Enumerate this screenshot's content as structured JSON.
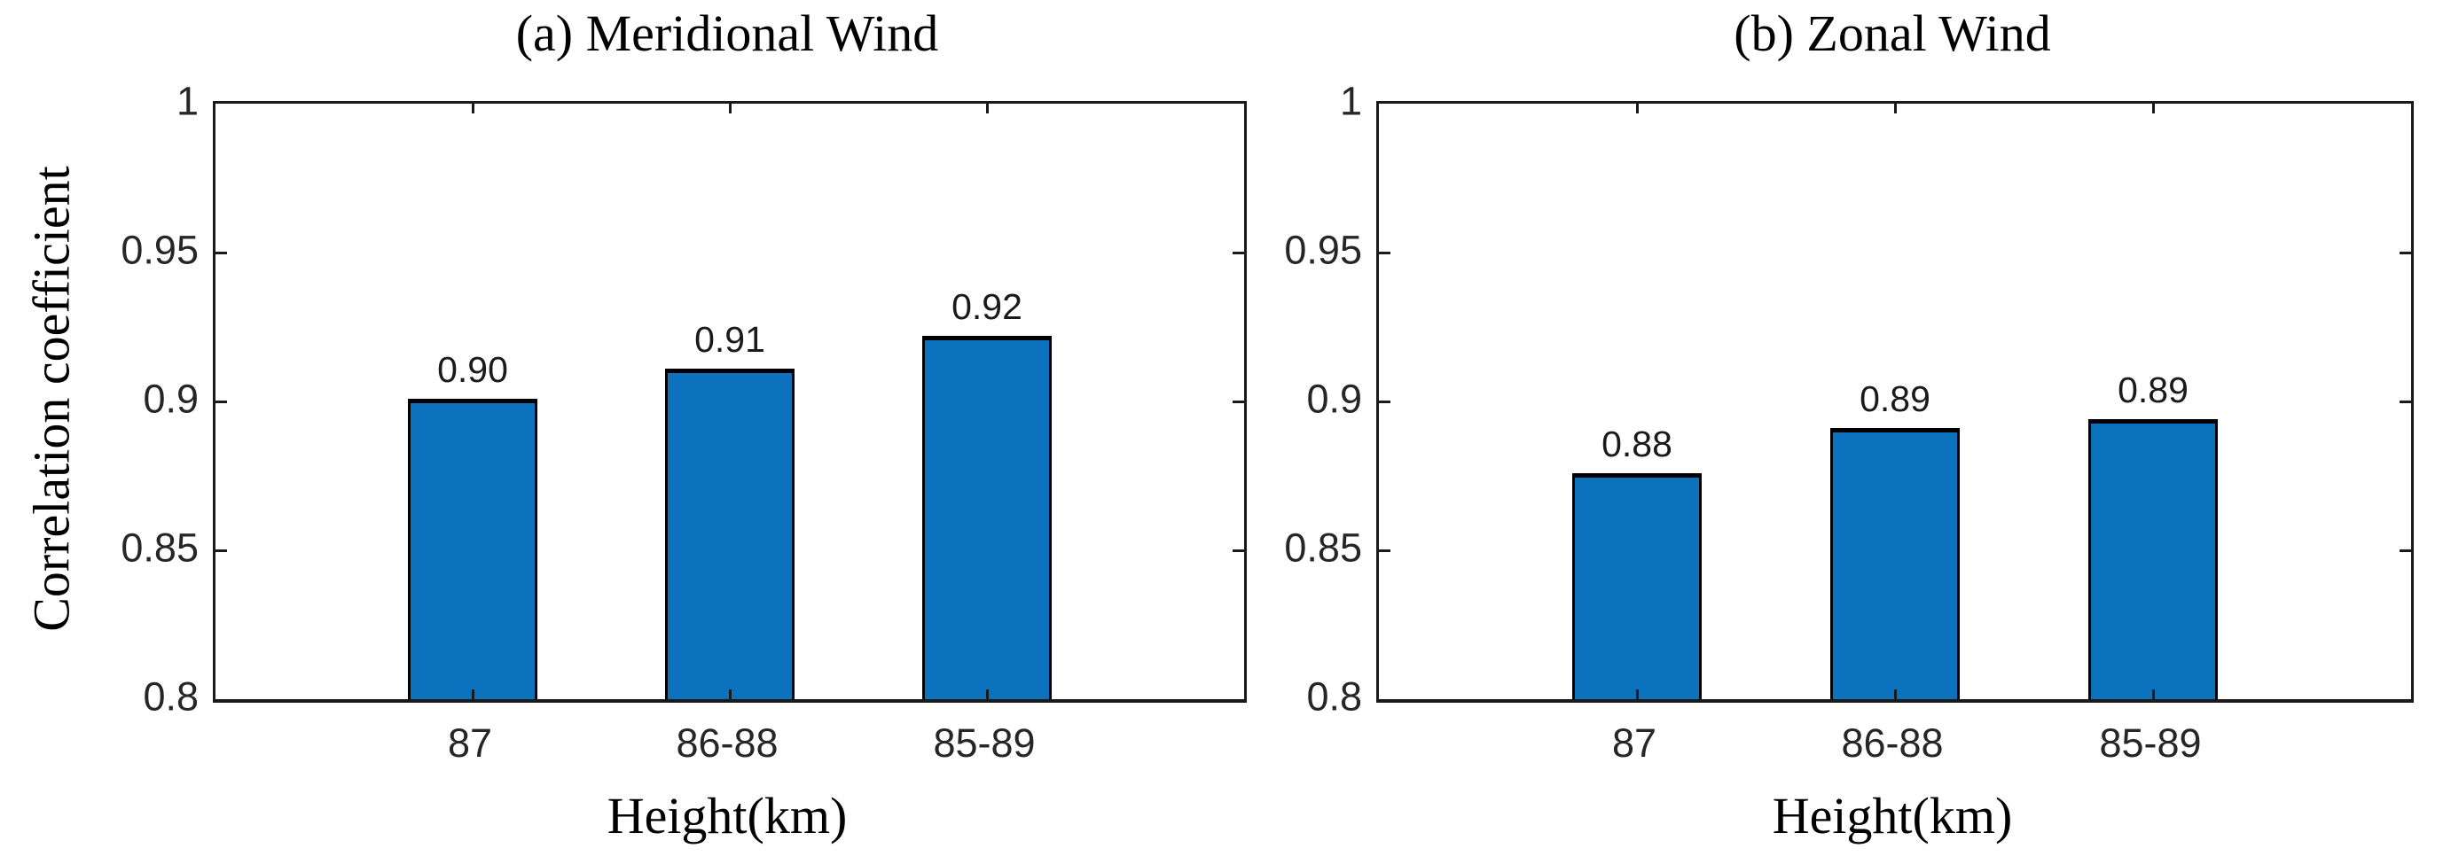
{
  "figure": {
    "background_color": "#ffffff",
    "axis_color": "#1a1a1a",
    "text_color": "#000000",
    "tick_label_color": "#262626"
  },
  "y_axis_label": "Correlation coefficient",
  "chart_data": [
    {
      "type": "bar",
      "panel": "a",
      "title": "(a) Meridional Wind",
      "xlabel": "Height(km)",
      "ylabel": "Correlation coefficient",
      "categories": [
        "87",
        "86-88",
        "85-89"
      ],
      "values": [
        0.901,
        0.911,
        0.922
      ],
      "bar_labels": [
        "0.90",
        "0.91",
        "0.92"
      ],
      "ylim": [
        0.8,
        1.0
      ],
      "yticks": [
        0.8,
        0.85,
        0.9,
        0.95,
        1
      ],
      "ytick_labels": [
        "0.8",
        "0.85",
        "0.9",
        "0.95",
        "1"
      ],
      "bar_face_color": "#0c72bd",
      "bar_edge_color": "#000000",
      "grid": false,
      "legend": "none"
    },
    {
      "type": "bar",
      "panel": "b",
      "title": "(b) Zonal Wind",
      "xlabel": "Height(km)",
      "ylabel": "",
      "categories": [
        "87",
        "86-88",
        "85-89"
      ],
      "values": [
        0.876,
        0.891,
        0.894
      ],
      "bar_labels": [
        "0.88",
        "0.89",
        "0.89"
      ],
      "ylim": [
        0.8,
        1.0
      ],
      "yticks": [
        0.8,
        0.85,
        0.9,
        0.95,
        1
      ],
      "ytick_labels": [
        "0.8",
        "0.85",
        "0.9",
        "0.95",
        "1"
      ],
      "bar_face_color": "#0c72bd",
      "bar_edge_color": "#000000",
      "grid": false,
      "legend": "none"
    }
  ]
}
